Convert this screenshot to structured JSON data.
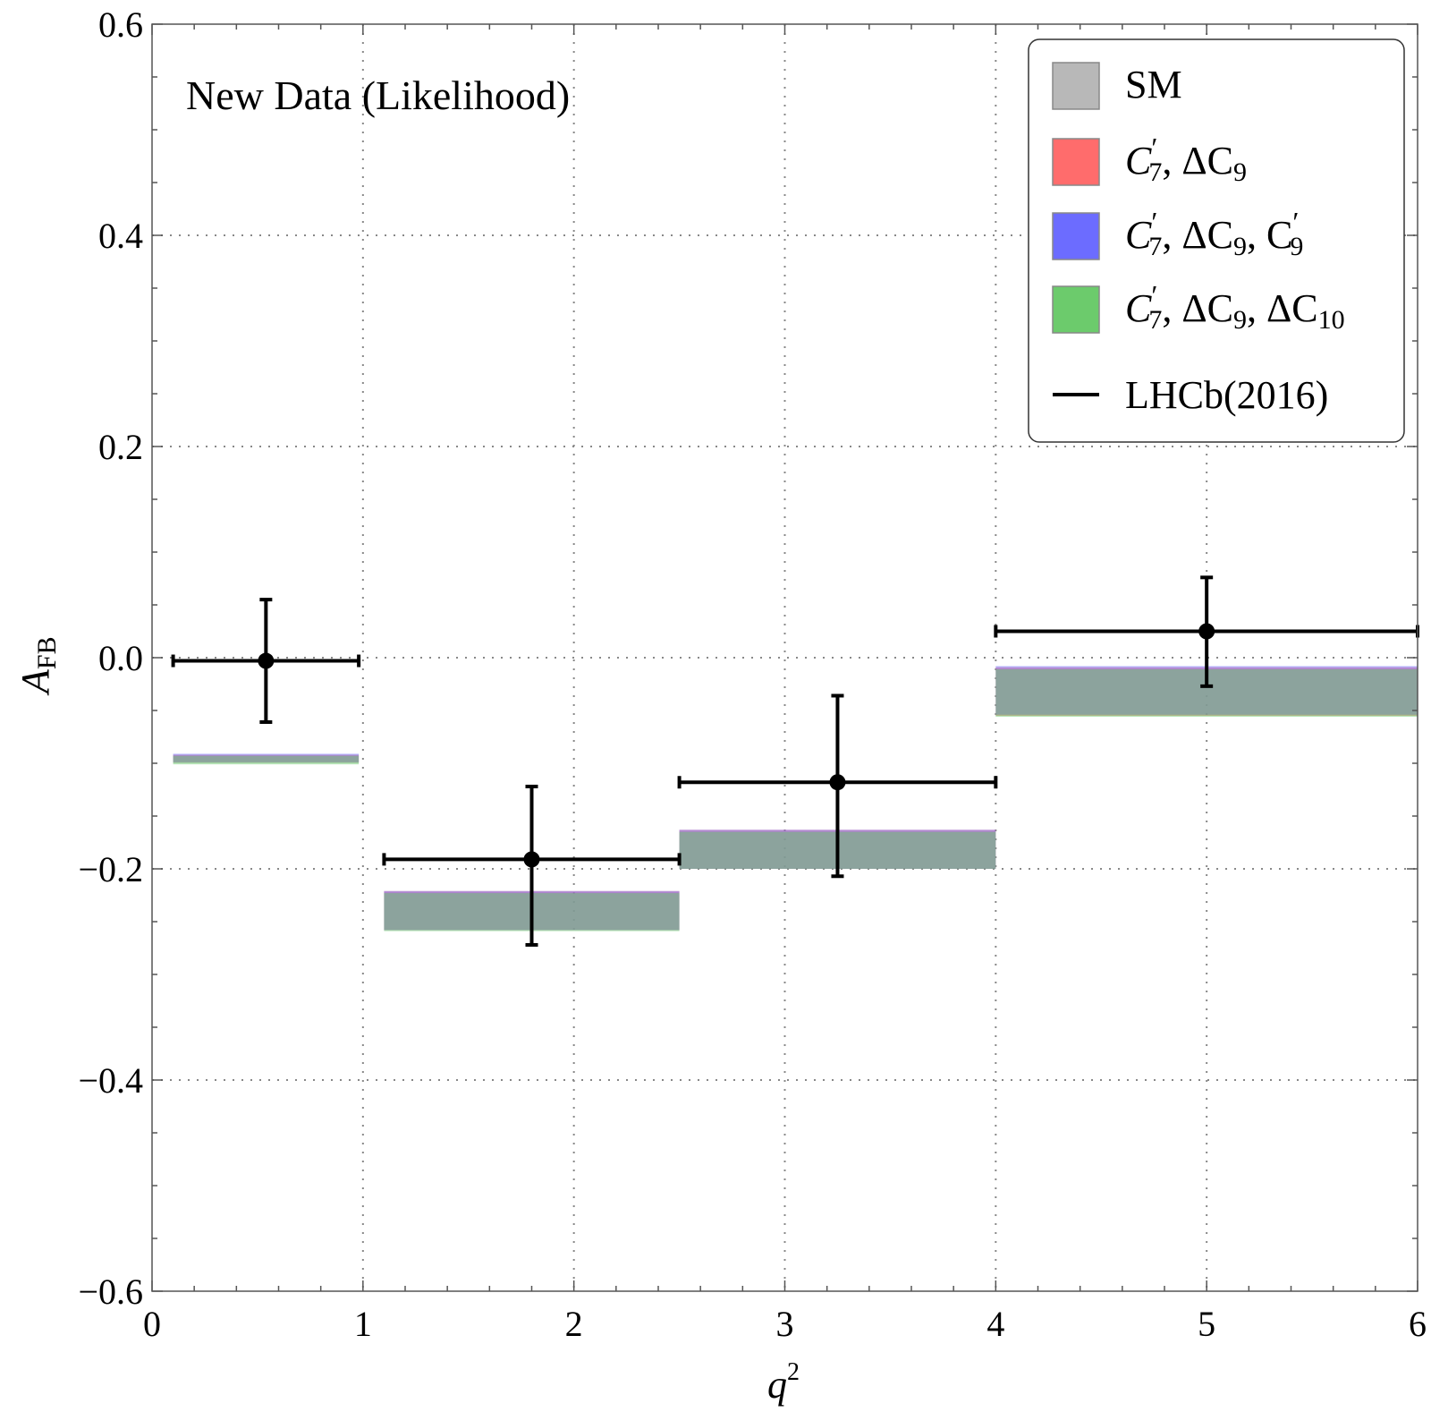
{
  "chart_data": {
    "type": "bar",
    "title": "New Data (Likelihood)",
    "xlabel": "q",
    "xlabel_sup": "2",
    "ylabel": "A",
    "ylabel_sub": "FB",
    "xlim": [
      0,
      6
    ],
    "ylim": [
      -0.6,
      0.6
    ],
    "grid": true,
    "legend_position": "top-right",
    "x_ticks": [
      0,
      1,
      2,
      3,
      4,
      5,
      6
    ],
    "x_tick_labels": [
      "0",
      "1",
      "2",
      "3",
      "4",
      "5",
      "6"
    ],
    "y_ticks": [
      -0.6,
      -0.4,
      -0.2,
      0.0,
      0.2,
      0.4,
      0.6
    ],
    "y_tick_labels": [
      "−0.6",
      "−0.4",
      "−0.2",
      "0.0",
      "0.2",
      "0.4",
      "0.6"
    ],
    "bins": [
      {
        "x_low": 0.1,
        "x_high": 0.98
      },
      {
        "x_low": 1.1,
        "x_high": 2.5
      },
      {
        "x_low": 2.5,
        "x_high": 4.0
      },
      {
        "x_low": 4.0,
        "x_high": 6.0
      }
    ],
    "series": [
      {
        "name": "SM",
        "color": "#a8a8a8",
        "bands": [
          [
            -0.1,
            -0.092
          ],
          [
            -0.258,
            -0.222
          ],
          [
            -0.2,
            -0.164
          ],
          [
            -0.055,
            -0.01
          ]
        ]
      },
      {
        "name": "C7', ΔC9",
        "color": "#ff6464",
        "bands": [
          [
            -0.099,
            -0.092
          ],
          [
            -0.258,
            -0.221
          ],
          [
            -0.2,
            -0.163
          ],
          [
            -0.055,
            -0.009
          ]
        ]
      },
      {
        "name": "C7', ΔC9, C9'",
        "color": "#6464ff",
        "bands": [
          [
            -0.099,
            -0.091
          ],
          [
            -0.258,
            -0.221
          ],
          [
            -0.2,
            -0.163
          ],
          [
            -0.054,
            -0.008
          ]
        ]
      },
      {
        "name": "C7', ΔC9, ΔC10",
        "color": "#64c864",
        "bands": [
          [
            -0.101,
            -0.093
          ],
          [
            -0.259,
            -0.223
          ],
          [
            -0.2,
            -0.165
          ],
          [
            -0.056,
            -0.011
          ]
        ]
      }
    ],
    "data_points": {
      "name": "LHCb(2016)",
      "color": "#000000",
      "points": [
        {
          "x": 0.54,
          "x_low": 0.1,
          "x_high": 0.98,
          "y": -0.003,
          "y_low": -0.061,
          "y_high": 0.055
        },
        {
          "x": 1.8,
          "x_low": 1.1,
          "x_high": 2.5,
          "y": -0.191,
          "y_low": -0.272,
          "y_high": -0.122
        },
        {
          "x": 3.25,
          "x_low": 2.5,
          "x_high": 4.0,
          "y": -0.118,
          "y_low": -0.207,
          "y_high": -0.036
        },
        {
          "x": 5.0,
          "x_low": 4.0,
          "x_high": 6.0,
          "y": 0.025,
          "y_low": -0.027,
          "y_high": 0.076
        }
      ]
    },
    "legend": [
      {
        "label": "SM",
        "swatch_color": "#b4b4b4",
        "kind": "box"
      },
      {
        "label_math": "C",
        "label_sub": "7",
        "label_rest": ", ΔC",
        "label_rest_sub": "9",
        "label_tail": "",
        "swatch_color": "#ff6464",
        "kind": "box"
      },
      {
        "label_math": "C",
        "label_sub": "7",
        "label_rest": ", ΔC",
        "label_rest_sub": "9",
        "label_tail": ", C",
        "label_tail_sub": "9",
        "swatch_color": "#6464ff",
        "kind": "box"
      },
      {
        "label_math": "C",
        "label_sub": "7",
        "label_rest": ", ΔC",
        "label_rest_sub": "9",
        "label_tail": ", ΔC",
        "label_tail_sub": "10",
        "swatch_color": "#64c864",
        "kind": "box"
      },
      {
        "label": "LHCb(2016)",
        "swatch_color": "#000000",
        "kind": "line"
      }
    ]
  }
}
